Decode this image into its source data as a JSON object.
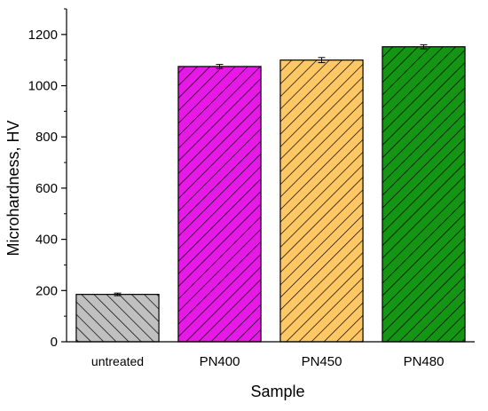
{
  "chart_data": {
    "type": "bar",
    "xlabel": "Sample",
    "ylabel": "Microhardness, HV",
    "ylim": [
      0,
      1300
    ],
    "yticks": [
      0,
      200,
      400,
      600,
      800,
      1000,
      1200
    ],
    "grid": false,
    "legend": "none",
    "categories": [
      "untreated",
      "PN400",
      "PN450",
      "PN480"
    ],
    "values": [
      185,
      1075,
      1100,
      1152
    ],
    "errors": [
      5,
      8,
      10,
      8
    ],
    "colors": [
      "#c0c0c0",
      "#e619e6",
      "#ffc864",
      "#149614"
    ],
    "hatch": "diagonal-lines"
  }
}
